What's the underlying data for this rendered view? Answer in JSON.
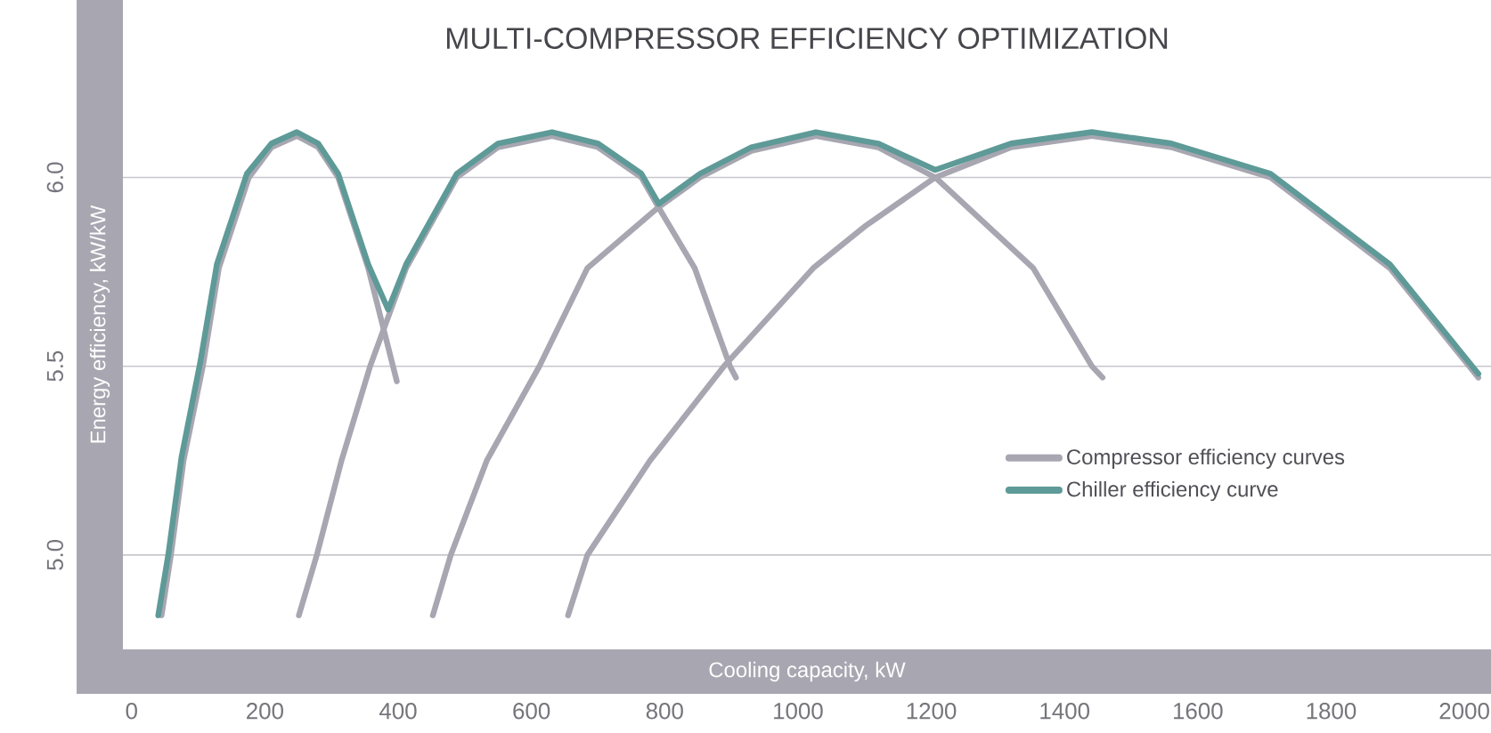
{
  "chart_data": {
    "type": "line",
    "title": "MULTI-COMPRESSOR EFFICIENCY OPTIMIZATION",
    "xlabel": "Cooling capacity, kW",
    "ylabel": "Energy efficiency, kW/kW",
    "xlim": [
      -13,
      2040
    ],
    "ylim": [
      4.75,
      6.47
    ],
    "xticks": [
      0,
      200,
      400,
      600,
      800,
      1000,
      1200,
      1400,
      1600,
      1800,
      2000
    ],
    "yticks": [
      {
        "value": 5,
        "label": "5.0"
      },
      {
        "value": 5.5,
        "label": "5.5"
      },
      {
        "value": 6,
        "label": "6.0"
      }
    ],
    "grid": "y",
    "legend": "right",
    "series": [
      {
        "name": "Compressor efficiency curves",
        "color": "#a7a6b1",
        "x": [
          45,
          59,
          78,
          107,
          131,
          176,
          210,
          248,
          280,
          310,
          355,
          398
        ],
        "values": [
          4.84,
          5.0,
          5.25,
          5.5,
          5.76,
          6.0,
          6.08,
          6.11,
          6.08,
          6.0,
          5.76,
          5.46
        ]
      },
      {
        "color": "#a7a6b1",
        "x": [
          251,
          278,
          315,
          358,
          412,
          488,
          550,
          631,
          700,
          765,
          791,
          845,
          898,
          907
        ],
        "values": [
          4.84,
          5.0,
          5.25,
          5.5,
          5.76,
          6.0,
          6.08,
          6.11,
          6.08,
          6.0,
          5.92,
          5.76,
          5.5,
          5.47
        ]
      },
      {
        "color": "#a7a6b1",
        "x": [
          452,
          479,
          533,
          612,
          684,
          790,
          853,
          930,
          1027,
          1120,
          1206,
          1353,
          1441,
          1457
        ],
        "values": [
          4.84,
          5.0,
          5.25,
          5.5,
          5.76,
          5.92,
          6.0,
          6.07,
          6.11,
          6.08,
          6.0,
          5.76,
          5.5,
          5.47
        ]
      },
      {
        "color": "#a7a6b1",
        "x": [
          655,
          684,
          778,
          889,
          1023,
          1100,
          1206,
          1320,
          1441,
          1560,
          1709,
          1888,
          2021
        ],
        "values": [
          4.84,
          5.0,
          5.25,
          5.5,
          5.76,
          5.87,
          6.0,
          6.08,
          6.11,
          6.08,
          6.0,
          5.76,
          5.47
        ]
      },
      {
        "name": "Chiller efficiency curve",
        "color": "#5e9a97",
        "x": [
          40,
          55,
          75,
          103,
          128,
          173,
          210,
          248,
          280,
          310,
          355,
          385,
          412,
          488,
          550,
          631,
          700,
          765,
          791,
          853,
          930,
          1027,
          1120,
          1206,
          1320,
          1441,
          1560,
          1709,
          1888,
          2021
        ],
        "values": [
          4.84,
          5.0,
          5.26,
          5.51,
          5.77,
          6.01,
          6.09,
          6.12,
          6.09,
          6.01,
          5.77,
          5.65,
          5.77,
          6.01,
          6.09,
          6.12,
          6.09,
          6.01,
          5.93,
          6.01,
          6.08,
          6.12,
          6.09,
          6.02,
          6.09,
          6.12,
          6.09,
          6.01,
          5.77,
          5.48
        ]
      }
    ]
  }
}
